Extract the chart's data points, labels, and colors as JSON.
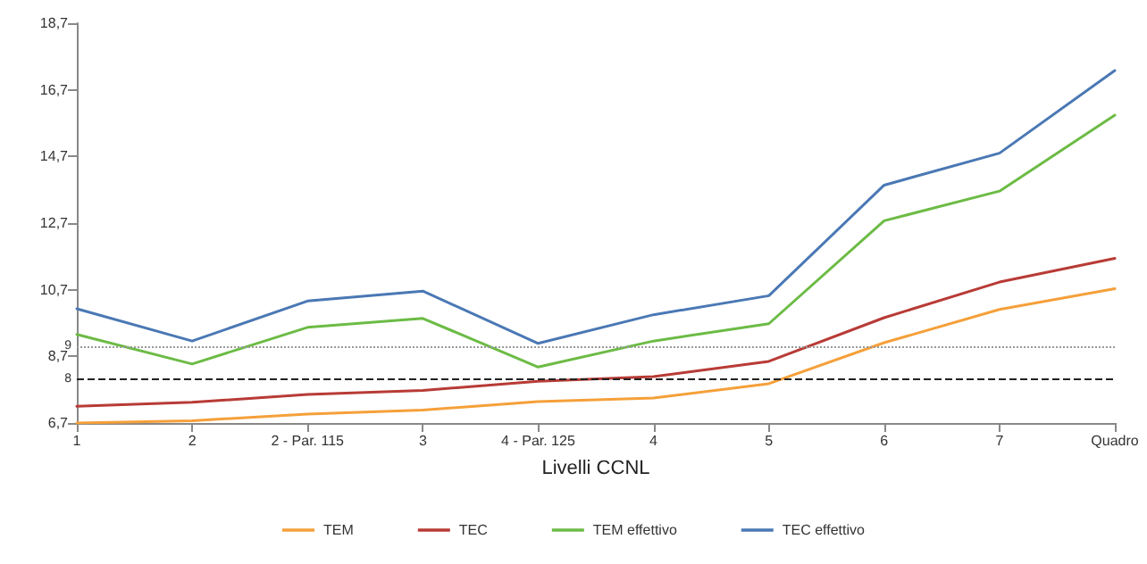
{
  "chart_data": {
    "type": "line",
    "xlabel": "Livelli CCNL",
    "categories": [
      "1",
      "2",
      "2 - Par. 115",
      "3",
      "4 - Par. 125",
      "4",
      "5",
      "6",
      "7",
      "Quadro"
    ],
    "series": [
      {
        "name": "TEM",
        "color": "#f5a03a",
        "values": [
          6.7,
          6.77,
          6.97,
          7.09,
          7.34,
          7.45,
          7.88,
          9.11,
          10.11,
          10.73
        ]
      },
      {
        "name": "TEC",
        "color": "#b83b36",
        "values": [
          7.2,
          7.32,
          7.56,
          7.68,
          7.95,
          8.09,
          8.55,
          9.86,
          10.93,
          11.64
        ]
      },
      {
        "name": "TEM effettivo",
        "color": "#6cbb45",
        "values": [
          9.36,
          8.47,
          9.57,
          9.84,
          8.38,
          9.16,
          9.68,
          12.77,
          13.66,
          15.94
        ]
      },
      {
        "name": "TEC effettivo",
        "color": "#4a78b4",
        "values": [
          10.13,
          9.16,
          10.36,
          10.66,
          9.09,
          9.95,
          10.52,
          13.84,
          14.8,
          17.28
        ]
      }
    ],
    "ylim": [
      6.7,
      18.7
    ],
    "yticks": [
      {
        "value": 6.7,
        "label": "6,7"
      },
      {
        "value": 8.7,
        "label": "8,7"
      },
      {
        "value": 10.7,
        "label": "10,7"
      },
      {
        "value": 12.7,
        "label": "12,7"
      },
      {
        "value": 14.7,
        "label": "14,7"
      },
      {
        "value": 16.7,
        "label": "16,7"
      },
      {
        "value": 18.7,
        "label": "18,7"
      }
    ],
    "ref_lines": [
      {
        "axis": "y",
        "value": 8,
        "label": "8",
        "color": "#222222",
        "line_style": "dashed"
      },
      {
        "axis": "y",
        "value": 9,
        "label": "9",
        "color": "#999999",
        "line_style": "dotted"
      }
    ],
    "grid": false,
    "legend": "bottom",
    "marker": "none",
    "line_style": "solid"
  }
}
